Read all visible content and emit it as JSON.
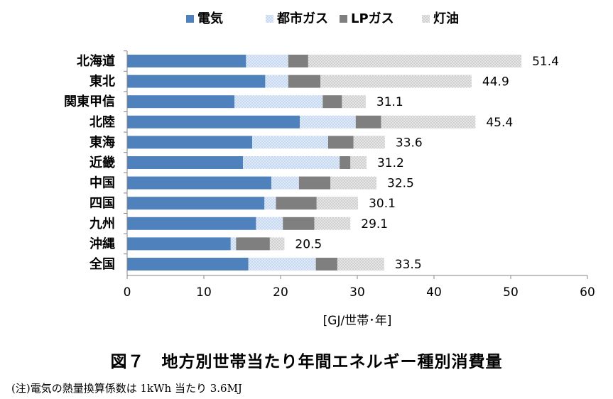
{
  "chart_data": {
    "type": "bar",
    "orientation": "horizontal",
    "stacked": true,
    "categories": [
      "北海道",
      "東北",
      "関東甲信",
      "北陸",
      "東海",
      "近畿",
      "中国",
      "四国",
      "九州",
      "沖縄",
      "全国"
    ],
    "series": [
      {
        "name": "電気",
        "color": "#4f81bd",
        "pattern": "solid",
        "values": [
          15.5,
          18.0,
          14.0,
          22.5,
          16.3,
          15.1,
          18.8,
          17.9,
          16.8,
          13.5,
          15.8
        ]
      },
      {
        "name": "都市ガス",
        "color": "#c6d9f1",
        "pattern": "dots",
        "values": [
          5.5,
          3.0,
          11.5,
          7.3,
          9.9,
          12.6,
          3.6,
          1.5,
          3.5,
          0.7,
          8.8
        ]
      },
      {
        "name": "LPガス",
        "color": "#7f7f7f",
        "pattern": "solid",
        "values": [
          2.6,
          4.2,
          2.5,
          3.3,
          3.3,
          1.4,
          4.1,
          5.3,
          4.1,
          4.4,
          2.8
        ]
      },
      {
        "name": "灯油",
        "color": "#d0d0d0",
        "pattern": "dots",
        "values": [
          27.8,
          19.7,
          3.1,
          12.3,
          4.1,
          2.1,
          6.0,
          5.4,
          4.7,
          1.9,
          6.1
        ]
      }
    ],
    "totals": [
      "51.4",
      "44.9",
      "31.1",
      "45.4",
      "33.6",
      "31.2",
      "32.5",
      "30.1",
      "29.1",
      "20.5",
      "33.5"
    ],
    "xlim": [
      0,
      60
    ],
    "xticks": [
      "0",
      "10",
      "20",
      "30",
      "40",
      "50",
      "60"
    ],
    "xlabel": "[GJ/世帯･年]",
    "legend_position": "top",
    "grid": false
  },
  "figure": {
    "title": "図７　地方別世帯当たり年間エネルギー種別消費量",
    "note": "(注)電気の熱量換算係数は 1kWh 当たり 3.6MJ"
  }
}
